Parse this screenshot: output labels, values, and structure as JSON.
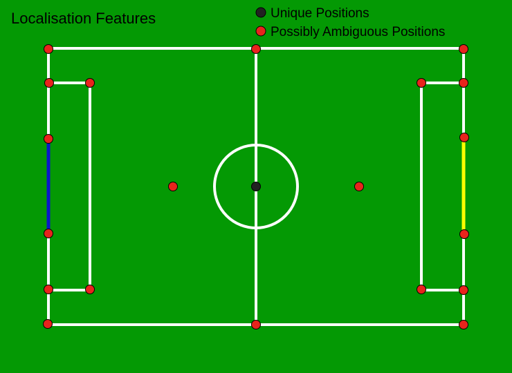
{
  "title": "Localisation Features",
  "legend": [
    {
      "label": "Unique Positions",
      "color": "#222222",
      "kind": "unique"
    },
    {
      "label": "Possibly Ambiguous Positions",
      "color": "#e8241c",
      "kind": "ambiguous"
    }
  ],
  "colors": {
    "pitch": "#049904",
    "field_lines": "#ffffff",
    "left_goal": "#0a17c8",
    "right_goal": "#ffff00",
    "unique_marker": "#222222",
    "ambiguous_marker": "#e8241c"
  },
  "features": {
    "unique": [
      "centre-spot"
    ],
    "ambiguous": [
      "corner-top-left",
      "corner-top-right",
      "corner-bottom-left",
      "corner-bottom-right",
      "halfway-top",
      "halfway-bottom",
      "left-penalty-box-top-outer",
      "left-penalty-box-top-inner",
      "left-penalty-box-bottom-outer",
      "left-penalty-box-bottom-inner",
      "right-penalty-box-top-outer",
      "right-penalty-box-top-inner",
      "right-penalty-box-bottom-outer",
      "right-penalty-box-bottom-inner",
      "left-goalpost-top",
      "left-goalpost-bottom",
      "right-goalpost-top",
      "right-goalpost-bottom",
      "left-penalty-spot",
      "right-penalty-spot"
    ]
  }
}
